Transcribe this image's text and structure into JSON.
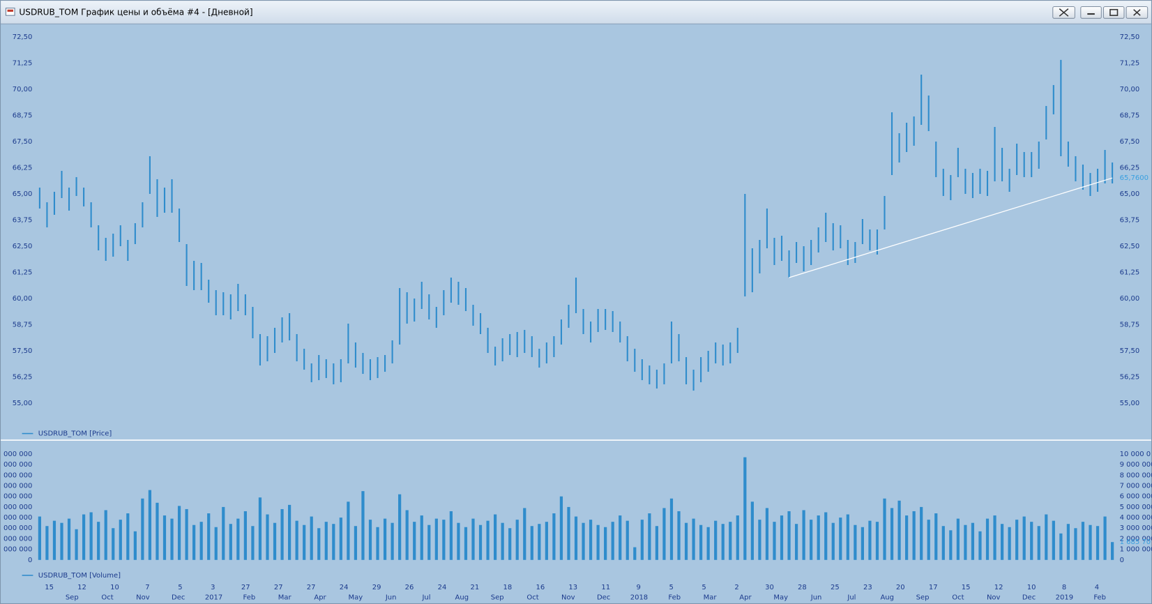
{
  "window": {
    "title": "USDRUB_TOM График цены и объёма #4 - [Дневной]"
  },
  "chart_data": {
    "type": "price-volume",
    "price": {
      "legend": "USDRUB_TOM [Price]",
      "color": "#2f8ccc",
      "high": [
        65.3,
        64.6,
        65.1,
        66.1,
        65.3,
        65.8,
        65.3,
        64.6,
        63.5,
        62.9,
        63.1,
        63.5,
        62.8,
        63.6,
        64.6,
        66.8,
        65.7,
        65.3,
        65.7,
        64.3,
        62.6,
        61.8,
        61.7,
        60.9,
        60.4,
        60.3,
        60.2,
        60.7,
        60.2,
        59.6,
        58.3,
        58.2,
        58.6,
        59.1,
        59.3,
        58.3,
        57.6,
        56.9,
        57.3,
        57.1,
        56.9,
        57.1,
        58.8,
        57.9,
        57.4,
        57.1,
        57.2,
        57.3,
        58.0,
        60.5,
        60.3,
        60.0,
        60.8,
        60.2,
        59.6,
        60.4,
        61.0,
        60.8,
        60.5,
        59.7,
        59.3,
        58.6,
        57.7,
        58.1,
        58.3,
        58.4,
        58.5,
        58.2,
        57.6,
        57.9,
        58.2,
        59.0,
        59.7,
        61.0,
        59.5,
        58.9,
        59.5,
        59.5,
        59.4,
        58.9,
        58.2,
        57.6,
        57.1,
        56.8,
        56.6,
        56.9,
        58.9,
        58.3,
        57.2,
        56.6,
        57.2,
        57.5,
        57.9,
        57.8,
        57.9,
        58.6,
        65.0,
        62.4,
        62.8,
        64.3,
        62.9,
        63.0,
        62.3,
        62.7,
        62.5,
        62.8,
        63.4,
        64.1,
        63.6,
        63.5,
        62.8,
        62.7,
        63.8,
        63.3,
        63.3,
        64.9,
        68.9,
        67.9,
        68.4,
        68.7,
        70.7,
        69.7,
        67.5,
        66.2,
        65.9,
        67.2,
        66.2,
        66.0,
        66.2,
        66.1,
        68.2,
        67.2,
        66.2,
        67.4,
        67.0,
        67.0,
        67.5,
        69.2,
        70.2,
        71.4,
        67.5,
        66.8,
        66.4,
        66.0,
        66.2,
        67.1,
        66.5
      ],
      "low": [
        64.3,
        63.4,
        64.0,
        64.8,
        64.2,
        64.9,
        64.4,
        63.4,
        62.3,
        61.8,
        62.0,
        62.5,
        61.8,
        62.6,
        63.4,
        65.0,
        63.9,
        64.1,
        64.1,
        62.7,
        60.6,
        60.4,
        60.4,
        59.8,
        59.2,
        59.2,
        59.0,
        59.4,
        59.2,
        58.1,
        56.8,
        57.0,
        57.4,
        57.9,
        58.0,
        57.0,
        56.6,
        56.0,
        56.1,
        56.2,
        55.9,
        56.0,
        56.9,
        56.7,
        56.4,
        56.1,
        56.2,
        56.5,
        56.9,
        57.8,
        58.8,
        58.9,
        59.5,
        59.0,
        58.6,
        59.2,
        59.8,
        59.7,
        59.4,
        58.7,
        58.3,
        57.4,
        56.8,
        57.0,
        57.3,
        57.2,
        57.4,
        57.2,
        56.7,
        56.9,
        57.2,
        57.8,
        58.6,
        59.3,
        58.3,
        57.9,
        58.4,
        58.5,
        58.4,
        57.9,
        57.0,
        56.5,
        56.1,
        55.9,
        55.7,
        55.9,
        56.9,
        57.0,
        55.9,
        55.6,
        56.0,
        56.5,
        56.9,
        56.8,
        56.9,
        57.4,
        60.1,
        60.3,
        61.2,
        62.4,
        61.6,
        61.8,
        61.0,
        61.7,
        61.3,
        61.6,
        62.2,
        62.7,
        62.3,
        62.4,
        61.6,
        61.7,
        62.6,
        62.3,
        62.1,
        63.3,
        65.9,
        66.5,
        67.0,
        67.3,
        68.3,
        68.0,
        65.8,
        64.9,
        64.7,
        65.8,
        65.0,
        64.8,
        65.0,
        64.9,
        65.6,
        65.6,
        65.1,
        65.9,
        65.8,
        65.8,
        66.2,
        67.6,
        68.8,
        66.8,
        66.3,
        65.6,
        65.2,
        64.9,
        65.1,
        65.5,
        65.5
      ],
      "ylim": [
        53.9,
        73.0
      ],
      "yticks": [
        {
          "value": 72.5,
          "label": "72,50"
        },
        {
          "value": 71.25,
          "label": "71,25"
        },
        {
          "value": 70,
          "label": "70,00"
        },
        {
          "value": 68.75,
          "label": "68,75"
        },
        {
          "value": 67.5,
          "label": "67,50"
        },
        {
          "value": 66.25,
          "label": "66,25"
        },
        {
          "value": 65,
          "label": "65,00"
        },
        {
          "value": 63.75,
          "label": "63,75"
        },
        {
          "value": 62.5,
          "label": "62,50"
        },
        {
          "value": 61.25,
          "label": "61,25"
        },
        {
          "value": 60,
          "label": "60,00"
        },
        {
          "value": 58.75,
          "label": "58,75"
        },
        {
          "value": 57.5,
          "label": "57,50"
        },
        {
          "value": 56.25,
          "label": "56,25"
        },
        {
          "value": 55,
          "label": "55,00"
        }
      ],
      "last_value": {
        "value": 65.76,
        "label": "65,7600"
      },
      "trendline": {
        "values": [
          61.0,
          65.76
        ],
        "color": "#ffffff"
      }
    },
    "volume": {
      "legend": "USDRUB_TOM [Volume]",
      "color": "#2f8ccc",
      "values": [
        4100000,
        3200000,
        3700000,
        3500000,
        3900000,
        2900000,
        4300000,
        4500000,
        3600000,
        4700000,
        3000000,
        3800000,
        4400000,
        2700000,
        5800000,
        6600000,
        5400000,
        4200000,
        3900000,
        5100000,
        4800000,
        3300000,
        3600000,
        4400000,
        3100000,
        5000000,
        3400000,
        3900000,
        4600000,
        3200000,
        5900000,
        4300000,
        3500000,
        4800000,
        5200000,
        3700000,
        3300000,
        4100000,
        3000000,
        3600000,
        3400000,
        4000000,
        5500000,
        3200000,
        6500000,
        3800000,
        3100000,
        3900000,
        3500000,
        6200000,
        4700000,
        3600000,
        4200000,
        3300000,
        3900000,
        3800000,
        4600000,
        3500000,
        3100000,
        3900000,
        3300000,
        3700000,
        4300000,
        3500000,
        3000000,
        3800000,
        4900000,
        3200000,
        3400000,
        3600000,
        4400000,
        6000000,
        5000000,
        4100000,
        3500000,
        3800000,
        3300000,
        3100000,
        3600000,
        4200000,
        3700000,
        1200000,
        3800000,
        4400000,
        3200000,
        4900000,
        5800000,
        4600000,
        3500000,
        3900000,
        3300000,
        3100000,
        3700000,
        3400000,
        3600000,
        4200000,
        9700000,
        5500000,
        3800000,
        4900000,
        3600000,
        4200000,
        4600000,
        3400000,
        4700000,
        3800000,
        4200000,
        4500000,
        3500000,
        4000000,
        4300000,
        3300000,
        3100000,
        3700000,
        3600000,
        5800000,
        4900000,
        5600000,
        4200000,
        4600000,
        5000000,
        3800000,
        4400000,
        3200000,
        2800000,
        3900000,
        3300000,
        3500000,
        2700000,
        3900000,
        4200000,
        3400000,
        3100000,
        3800000,
        4100000,
        3600000,
        3200000,
        4300000,
        3700000,
        2500000,
        3400000,
        3000000,
        3600000,
        3300000,
        3200000,
        4100000,
        1685700
      ],
      "ylim": [
        0,
        10900000
      ],
      "yticks": [
        {
          "value": 10000000,
          "label": "10 000 0"
        },
        {
          "value": 9000000,
          "label": "9 000 000"
        },
        {
          "value": 8000000,
          "label": "8 000 000"
        },
        {
          "value": 7000000,
          "label": "7 000 000"
        },
        {
          "value": 6000000,
          "label": "6 000 000"
        },
        {
          "value": 5000000,
          "label": "5 000 000"
        },
        {
          "value": 4000000,
          "label": "4 000 000"
        },
        {
          "value": 3000000,
          "label": "3 000 000"
        },
        {
          "value": 2000000,
          "label": "2 000 000"
        },
        {
          "value": 1000000,
          "label": "1 000 000"
        },
        0
      ],
      "yticks_left": [
        {
          "value": 10000000,
          "label": "000 000"
        },
        {
          "value": 9000000,
          "label": "000 000"
        },
        {
          "value": 8000000,
          "label": "000 000"
        },
        {
          "value": 7000000,
          "label": "000 000"
        },
        {
          "value": 6000000,
          "label": "000 000"
        },
        {
          "value": 5000000,
          "label": "000 000"
        },
        {
          "value": 4000000,
          "label": "000 000"
        },
        {
          "value": 3000000,
          "label": "000 000"
        },
        {
          "value": 2000000,
          "label": "000 000"
        },
        {
          "value": 1000000,
          "label": "000 000"
        },
        0
      ],
      "last_value": {
        "value": 1685700,
        "label": "1 685 70"
      }
    },
    "x_day_labels": [
      "15",
      "12",
      "10",
      "7",
      "5",
      "3",
      "27",
      "27",
      "27",
      "24",
      "29",
      "26",
      "24",
      "21",
      "18",
      "16",
      "13",
      "11",
      "9",
      "5",
      "5",
      "2",
      "30",
      "28",
      "25",
      "23",
      "20",
      "17",
      "15",
      "12",
      "10",
      "8",
      "4"
    ],
    "x_month_labels": [
      "Sep",
      "Oct",
      "Nov",
      "Dec",
      "2017",
      "Feb",
      "Mar",
      "Apr",
      "May",
      "Jun",
      "Jul",
      "Aug",
      "Sep",
      "Oct",
      "Nov",
      "Dec",
      "2018",
      "Feb",
      "Mar",
      "Apr",
      "May",
      "Jun",
      "Jul",
      "Aug",
      "Sep",
      "Oct",
      "Nov",
      "Dec",
      "2019",
      "Feb"
    ]
  }
}
